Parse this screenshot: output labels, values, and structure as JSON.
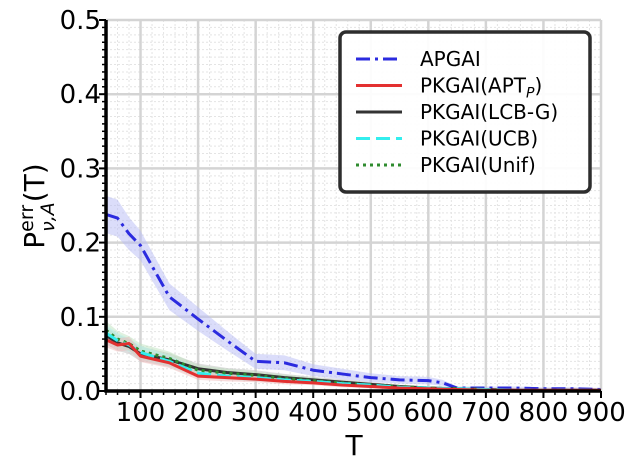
{
  "chart_data": {
    "type": "line",
    "xlabel": "T",
    "ylabel_base": "P",
    "ylabel_sup": "err",
    "ylabel_sub": "ν,A",
    "ylabel_arg": "(T)",
    "xlim": [
      40,
      900
    ],
    "ylim": [
      0,
      0.5
    ],
    "xticks": [
      100,
      200,
      300,
      400,
      500,
      600,
      700,
      800,
      900
    ],
    "yticks": [
      0.0,
      0.1,
      0.2,
      0.3,
      0.4,
      0.5
    ],
    "x_minor_step": 20,
    "y_minor_step": 0.01,
    "grid": true,
    "legend_position": "top-right",
    "series": [
      {
        "name": "APGAI",
        "label_main": "APGAI",
        "label_sub": "",
        "label_after": "",
        "color": "#2b2bdf",
        "dash": "14,5,3,5",
        "band_color": "#b8bcf6",
        "x": [
          40,
          60,
          80,
          100,
          150,
          200,
          250,
          300,
          350,
          400,
          450,
          500,
          550,
          600,
          625,
          650,
          700,
          750,
          800,
          850,
          900
        ],
        "values": [
          0.238,
          0.233,
          0.212,
          0.196,
          0.127,
          0.097,
          0.068,
          0.04,
          0.038,
          0.028,
          0.023,
          0.018,
          0.015,
          0.014,
          0.011,
          0.004,
          0.004,
          0.004,
          0.003,
          0.003,
          0.002
        ],
        "band_width": [
          0.025,
          0.025,
          0.022,
          0.02,
          0.018,
          0.016,
          0.013,
          0.01,
          0.01,
          0.008,
          0.007,
          0.006,
          0.005,
          0.005,
          0.004,
          0.002,
          0.002,
          0.002,
          0.002,
          0.002,
          0.002
        ]
      },
      {
        "name": "PKGAI(APT_P)",
        "label_main": "PKGAI(APT",
        "label_sub": "P",
        "label_after": ")",
        "color": "#e33030",
        "dash": "",
        "band_color": "#f2b9b9",
        "x": [
          40,
          60,
          80,
          100,
          150,
          200,
          250,
          300,
          350,
          400,
          450,
          500,
          550,
          600,
          650,
          700,
          750,
          800,
          850,
          900
        ],
        "values": [
          0.069,
          0.062,
          0.064,
          0.047,
          0.038,
          0.02,
          0.018,
          0.016,
          0.013,
          0.011,
          0.008,
          0.006,
          0.004,
          0.003,
          0.002,
          0.001,
          0.001,
          0.001,
          0.001,
          0.001
        ],
        "band_width": [
          0.01,
          0.009,
          0.009,
          0.008,
          0.007,
          0.005,
          0.005,
          0.004,
          0.004,
          0.003,
          0.003,
          0.002,
          0.002,
          0.002,
          0.001,
          0.001,
          0.001,
          0.001,
          0.001,
          0.001
        ]
      },
      {
        "name": "PKGAI(LCB-G)",
        "label_main": "PKGAI(LCB-G)",
        "label_sub": "",
        "label_after": "",
        "color": "#333333",
        "dash": "",
        "band_color": "#bdbdbd",
        "x": [
          40,
          60,
          80,
          100,
          150,
          200,
          250,
          300,
          350,
          400,
          450,
          500,
          550,
          600,
          650,
          700,
          750,
          800,
          850,
          900
        ],
        "values": [
          0.075,
          0.065,
          0.06,
          0.05,
          0.042,
          0.03,
          0.025,
          0.022,
          0.018,
          0.015,
          0.012,
          0.009,
          0.006,
          0.004,
          0.003,
          0.002,
          0.001,
          0.001,
          0.001,
          0.001
        ],
        "band_width": [
          0.012,
          0.011,
          0.01,
          0.01,
          0.009,
          0.007,
          0.006,
          0.006,
          0.005,
          0.004,
          0.004,
          0.003,
          0.002,
          0.002,
          0.001,
          0.001,
          0.001,
          0.001,
          0.001,
          0.001
        ]
      },
      {
        "name": "PKGAI(UCB)",
        "label_main": "PKGAI(UCB)",
        "label_sub": "",
        "label_after": "",
        "color": "#33eeee",
        "dash": "14,6",
        "band_color": "#b4f2ec",
        "x": [
          40,
          60,
          80,
          100,
          150,
          200,
          250,
          300,
          350,
          400,
          450,
          500,
          550,
          600,
          650,
          700,
          750,
          800,
          850,
          900
        ],
        "values": [
          0.078,
          0.068,
          0.062,
          0.052,
          0.04,
          0.024,
          0.02,
          0.018,
          0.015,
          0.013,
          0.01,
          0.008,
          0.005,
          0.004,
          0.003,
          0.002,
          0.001,
          0.001,
          0.001,
          0.001
        ],
        "band_width": [
          0.011,
          0.01,
          0.009,
          0.009,
          0.008,
          0.006,
          0.005,
          0.005,
          0.004,
          0.004,
          0.003,
          0.002,
          0.002,
          0.002,
          0.001,
          0.001,
          0.001,
          0.001,
          0.001,
          0.001
        ]
      },
      {
        "name": "PKGAI(Unif)",
        "label_main": "PKGAI(Unif)",
        "label_sub": "",
        "label_after": "",
        "color": "#2e8b2e",
        "dash": "3,4",
        "band_color": "#bfe3bf",
        "x": [
          40,
          60,
          80,
          100,
          150,
          200,
          250,
          300,
          350,
          400,
          450,
          500,
          550,
          600,
          650,
          700,
          750,
          800,
          850,
          900
        ],
        "values": [
          0.082,
          0.07,
          0.064,
          0.054,
          0.044,
          0.028,
          0.024,
          0.021,
          0.017,
          0.014,
          0.011,
          0.008,
          0.006,
          0.004,
          0.003,
          0.002,
          0.001,
          0.001,
          0.001,
          0.001
        ],
        "band_width": [
          0.012,
          0.011,
          0.01,
          0.01,
          0.009,
          0.007,
          0.006,
          0.005,
          0.005,
          0.004,
          0.003,
          0.003,
          0.002,
          0.002,
          0.001,
          0.001,
          0.001,
          0.001,
          0.001,
          0.001
        ]
      }
    ]
  }
}
